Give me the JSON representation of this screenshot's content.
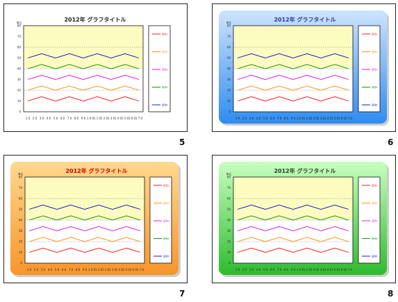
{
  "thumbnails": [
    {
      "number": "5",
      "style": "plain",
      "title_color": "#222222",
      "bg_colors": [
        "#ffffff",
        "#ffffff"
      ],
      "shadow": false
    },
    {
      "number": "6",
      "style": "gradient-blue",
      "title_color": "#333399",
      "bg_colors": [
        "#cfe4ff",
        "#2f8cf0"
      ],
      "shadow": true
    },
    {
      "number": "7",
      "style": "gradient-orange",
      "title_color": "#cc0000",
      "bg_colors": [
        "#ffd890",
        "#f8952a"
      ],
      "shadow": true
    },
    {
      "number": "8",
      "style": "gradient-green",
      "title_color": "#224422",
      "bg_colors": [
        "#c8ffc0",
        "#2ebb2e"
      ],
      "shadow": true
    }
  ],
  "chart_data": {
    "type": "line",
    "title": "2012年 グラフタイトル",
    "ylabel": "単位",
    "ylim": [
      0,
      80
    ],
    "yticks": [
      0,
      10,
      20,
      30,
      40,
      50,
      60,
      70,
      80
    ],
    "categories": [
      "10",
      "20",
      "30",
      "40",
      "50",
      "60",
      "70",
      "80",
      "90",
      "100",
      "110",
      "120",
      "130",
      "140",
      "150",
      "160",
      "170"
    ],
    "xtick_labels": [
      "1 0",
      "2 0",
      "3 0",
      "4 0",
      "5 0",
      "6 0",
      "7 0",
      "8 0",
      "9 0",
      "1 0 0",
      "1 1 0",
      "1 2 0",
      "1 3 0",
      "1 4 0",
      "1 5 0",
      "1 6 0",
      "1 7 0"
    ],
    "plot_bands": [
      {
        "from": 0,
        "to": 40,
        "color": "#ffffff"
      },
      {
        "from": 40,
        "to": 80,
        "color": "#fdfcc0"
      }
    ],
    "reference_lines": [
      20,
      40,
      60
    ],
    "legend_position": "right",
    "series": [
      {
        "color": "#ff0000",
        "legend_label": "系列1",
        "values": [
          10,
          12,
          14,
          12,
          10,
          12,
          14,
          12,
          10,
          12,
          14,
          12,
          10,
          12,
          14,
          12,
          10
        ]
      },
      {
        "color": "#ff8800",
        "legend_label": "系列2",
        "values": [
          20,
          22,
          24,
          22,
          20,
          22,
          24,
          22,
          20,
          22,
          24,
          22,
          20,
          22,
          24,
          22,
          20
        ]
      },
      {
        "color": "#dd00dd",
        "legend_label": "系列3",
        "values": [
          30,
          32,
          34,
          32,
          30,
          32,
          34,
          32,
          30,
          32,
          34,
          32,
          30,
          32,
          34,
          32,
          30
        ]
      },
      {
        "color": "#008800",
        "legend_label": "系列4",
        "values": [
          40,
          42,
          44,
          42,
          40,
          42,
          44,
          42,
          40,
          42,
          44,
          42,
          40,
          42,
          44,
          42,
          40
        ]
      },
      {
        "color": "#0000cc",
        "legend_label": "系列5",
        "values": [
          50,
          52,
          54,
          52,
          50,
          52,
          54,
          52,
          50,
          52,
          54,
          52,
          50,
          52,
          54,
          52,
          50
        ]
      }
    ]
  }
}
